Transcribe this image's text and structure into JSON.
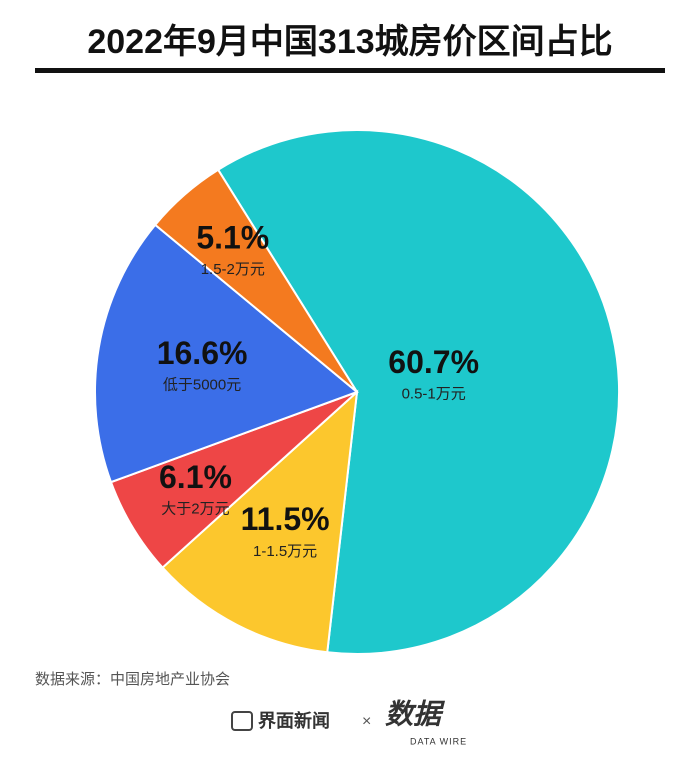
{
  "chart_data": {
    "type": "pie",
    "title": "2022年9月中国313城房价区间占比",
    "categories": [
      "0.5-1万元",
      "1-1.5万元",
      "大于2万元",
      "低于5000元",
      "1.5-2万元"
    ],
    "values": [
      60.7,
      11.5,
      6.1,
      16.6,
      5.1
    ],
    "value_labels": [
      "60.7%",
      "11.5%",
      "6.1%",
      "16.6%",
      "5.1%"
    ],
    "colors": [
      "#1ec8cc",
      "#fcc72d",
      "#ee4646",
      "#3b6ee8",
      "#f47a1f"
    ]
  },
  "footer": {
    "source": "数据来源：中国房地产业协会",
    "brand": "界面新闻",
    "separator": "×",
    "logo": "数据",
    "logo_sub": "DATA WIRE"
  }
}
